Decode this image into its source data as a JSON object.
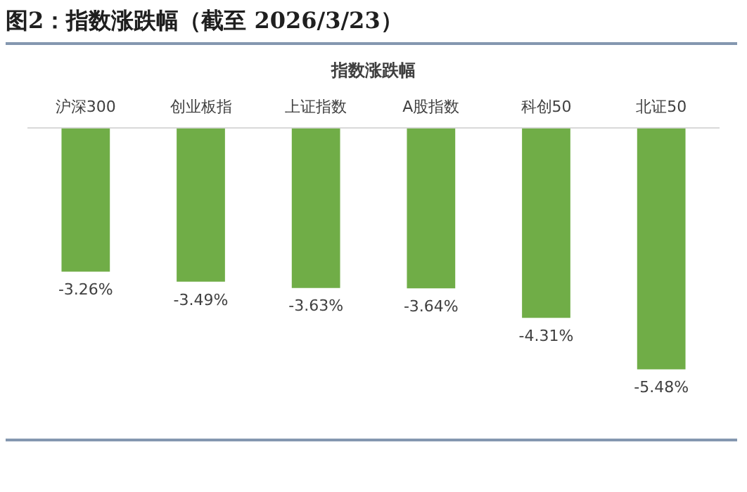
{
  "chart_data": {
    "type": "bar",
    "title": "图2：指数涨跌幅（截至 2026/3/23）",
    "subtitle": "指数涨跌幅",
    "categories": [
      "沪深300",
      "创业板指",
      "上证指数",
      "A股指数",
      "科创50",
      "北证50"
    ],
    "values": [
      -3.26,
      -3.49,
      -3.63,
      -3.64,
      -4.31,
      -5.48
    ],
    "value_labels": [
      "-3.26%",
      "-3.49%",
      "-3.63%",
      "-3.64%",
      "-4.31%",
      "-5.48%"
    ],
    "color": "#70ad47",
    "grid": false,
    "legend": false
  }
}
